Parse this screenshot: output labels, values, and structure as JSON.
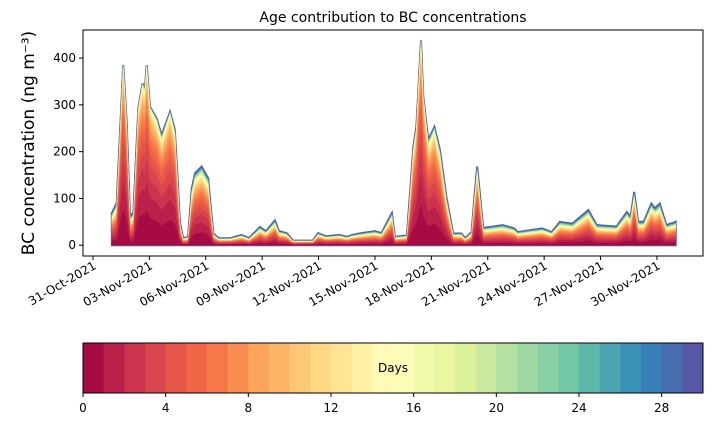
{
  "chart_data": {
    "type": "area",
    "stacked": true,
    "title": "Age contribution to BC concentrations",
    "ylabel": "BC concentration (ng m⁻³)",
    "xlabel": "",
    "x_units": "days since 01-Nov-2021",
    "xlim": [
      -1.53,
      31.45
    ],
    "ylim": [
      -23,
      460
    ],
    "yticks": [
      0,
      100,
      200,
      300,
      400
    ],
    "xticks": [
      {
        "x": -1,
        "label": "31-Oct-2021"
      },
      {
        "x": 2,
        "label": "03-Nov-2021"
      },
      {
        "x": 5,
        "label": "06-Nov-2021"
      },
      {
        "x": 8,
        "label": "09-Nov-2021"
      },
      {
        "x": 11,
        "label": "12-Nov-2021"
      },
      {
        "x": 14,
        "label": "15-Nov-2021"
      },
      {
        "x": 17,
        "label": "18-Nov-2021"
      },
      {
        "x": 20,
        "label": "21-Nov-2021"
      },
      {
        "x": 23,
        "label": "24-Nov-2021"
      },
      {
        "x": 26,
        "label": "27-Nov-2021"
      },
      {
        "x": 29,
        "label": "30-Nov-2021"
      }
    ],
    "total_series": [
      [
        0,
        68
      ],
      [
        0.26,
        90
      ],
      [
        0.45,
        250
      ],
      [
        0.61,
        385
      ],
      [
        0.79,
        267
      ],
      [
        0.97,
        60
      ],
      [
        1.15,
        70
      ],
      [
        1.41,
        293
      ],
      [
        1.64,
        346
      ],
      [
        1.75,
        330
      ],
      [
        1.86,
        385
      ],
      [
        2.03,
        296
      ],
      [
        2.39,
        271
      ],
      [
        2.65,
        235
      ],
      [
        3.1,
        285
      ],
      [
        3.36,
        246
      ],
      [
        3.63,
        47
      ],
      [
        3.8,
        15
      ],
      [
        4.06,
        18
      ],
      [
        4.25,
        120
      ],
      [
        4.43,
        154
      ],
      [
        4.78,
        168
      ],
      [
        5.13,
        143
      ],
      [
        5.4,
        25
      ],
      [
        5.7,
        15
      ],
      [
        6.3,
        15
      ],
      [
        6.9,
        22
      ],
      [
        7.3,
        15
      ],
      [
        7.88,
        39
      ],
      [
        8.2,
        30
      ],
      [
        8.68,
        53
      ],
      [
        8.9,
        30
      ],
      [
        9.3,
        26
      ],
      [
        9.64,
        10
      ],
      [
        10.7,
        10
      ],
      [
        10.97,
        26
      ],
      [
        11.4,
        19
      ],
      [
        12.1,
        22
      ],
      [
        12.5,
        18
      ],
      [
        12.8,
        22
      ],
      [
        13.3,
        26
      ],
      [
        14.0,
        30
      ],
      [
        14.35,
        26
      ],
      [
        14.8,
        61
      ],
      [
        14.9,
        69
      ],
      [
        15.06,
        18
      ],
      [
        15.7,
        21
      ],
      [
        16.04,
        210
      ],
      [
        16.2,
        253
      ],
      [
        16.45,
        438
      ],
      [
        16.57,
        317
      ],
      [
        16.84,
        225
      ],
      [
        17.16,
        253
      ],
      [
        17.46,
        203
      ],
      [
        17.8,
        103
      ],
      [
        18.16,
        25
      ],
      [
        18.6,
        25
      ],
      [
        18.8,
        15
      ],
      [
        19.14,
        28
      ],
      [
        19.3,
        109
      ],
      [
        19.44,
        168
      ],
      [
        19.58,
        110
      ],
      [
        19.76,
        37
      ],
      [
        20.8,
        43
      ],
      [
        21.4,
        36
      ],
      [
        21.6,
        28
      ],
      [
        22.4,
        33
      ],
      [
        22.9,
        36
      ],
      [
        23.4,
        28
      ],
      [
        23.84,
        50
      ],
      [
        24.5,
        46
      ],
      [
        25.35,
        75
      ],
      [
        25.8,
        43
      ],
      [
        26.85,
        40
      ],
      [
        27.4,
        71
      ],
      [
        27.6,
        61
      ],
      [
        27.79,
        114
      ],
      [
        28.0,
        50
      ],
      [
        28.3,
        50
      ],
      [
        28.7,
        89
      ],
      [
        28.9,
        79
      ],
      [
        29.15,
        89
      ],
      [
        29.5,
        43
      ],
      [
        30.0,
        50
      ]
    ],
    "age_bins": 30,
    "age_share_approx": [
      0.16,
      0.13,
      0.11,
      0.095,
      0.08,
      0.07,
      0.06,
      0.05,
      0.042,
      0.036,
      0.03,
      0.025,
      0.021,
      0.018,
      0.015,
      0.013,
      0.011,
      0.009,
      0.008,
      0.007,
      0.006,
      0.005,
      0.004,
      0.0035,
      0.003,
      0.0025,
      0.002,
      0.002,
      0.0015,
      0.0015
    ],
    "colorbar": {
      "label": "Days",
      "range": [
        0,
        30
      ],
      "ticks": [
        0,
        4,
        8,
        12,
        16,
        20,
        24,
        28
      ],
      "colormap_anchors": [
        "#9e0142",
        "#d53e4f",
        "#f46d43",
        "#fdae61",
        "#fee08b",
        "#ffffbf",
        "#e6f598",
        "#abdda4",
        "#66c2a5",
        "#3288bd",
        "#5e4fa2"
      ]
    }
  }
}
